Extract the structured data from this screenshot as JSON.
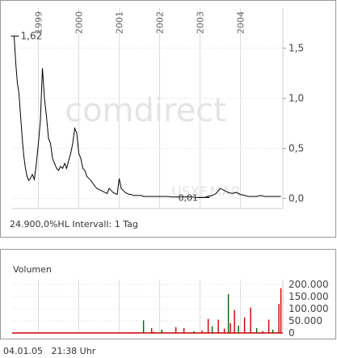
{
  "chart_data": [
    {
      "type": "line",
      "x_tick_labels": [
        "1999",
        "2000",
        "2001",
        "2002",
        "2003",
        "2004"
      ],
      "y_ticks": [
        0,
        0.5,
        1,
        1.5
      ],
      "y_tick_labels": [
        "0,0",
        "0,5",
        "1,0",
        "1,5"
      ],
      "ylim": [
        -0.1,
        1.9
      ],
      "xlim": [
        1998.35,
        2005.05
      ],
      "annotations": [
        {
          "text": "1,62",
          "x": 1998.4,
          "y": 1.62
        },
        {
          "text": "0,01",
          "x": 2003.0,
          "y": 0.01
        }
      ],
      "series": [
        {
          "x": [
            1998.4,
            1998.44,
            1998.48,
            1998.52,
            1998.56,
            1998.6,
            1998.64,
            1998.68,
            1998.72,
            1998.76,
            1998.8,
            1998.85,
            1998.9,
            1998.95,
            1999.0,
            1999.05,
            1999.1,
            1999.15,
            1999.2,
            1999.25,
            1999.3,
            1999.35,
            1999.4,
            1999.45,
            1999.5,
            1999.55,
            1999.6,
            1999.65,
            1999.7,
            1999.75,
            1999.8,
            1999.85,
            1999.9,
            1999.95,
            2000.0,
            2000.05,
            2000.1,
            2000.15,
            2000.2,
            2000.25,
            2000.3,
            2000.35,
            2000.4,
            2000.45,
            2000.5,
            2000.55,
            2000.6,
            2000.65,
            2000.7,
            2000.75,
            2000.8,
            2000.85,
            2000.9,
            2000.95,
            2001.0,
            2001.05,
            2001.1,
            2001.15,
            2001.2,
            2001.25,
            2001.3,
            2001.35,
            2001.4,
            2001.45,
            2001.5,
            2001.55,
            2001.6,
            2001.65,
            2001.7,
            2001.75,
            2001.8,
            2001.9,
            2002.0,
            2002.1,
            2002.2,
            2002.3,
            2002.4,
            2002.5,
            2002.6,
            2002.7,
            2002.8,
            2002.9,
            2003.0,
            2003.1,
            2003.2,
            2003.3,
            2003.4,
            2003.5,
            2003.6,
            2003.7,
            2003.8,
            2003.9,
            2004.0,
            2004.1,
            2004.2,
            2004.3,
            2004.4,
            2004.5,
            2004.6,
            2004.7,
            2004.8,
            2004.9,
            2005.0
          ],
          "y": [
            1.62,
            1.35,
            1.15,
            1.05,
            0.82,
            0.6,
            0.42,
            0.3,
            0.22,
            0.18,
            0.2,
            0.24,
            0.19,
            0.35,
            0.55,
            0.78,
            1.3,
            1.0,
            0.82,
            0.6,
            0.55,
            0.4,
            0.35,
            0.3,
            0.28,
            0.32,
            0.3,
            0.35,
            0.3,
            0.38,
            0.45,
            0.55,
            0.7,
            0.65,
            0.45,
            0.4,
            0.3,
            0.28,
            0.22,
            0.2,
            0.18,
            0.15,
            0.12,
            0.1,
            0.09,
            0.08,
            0.07,
            0.06,
            0.05,
            0.1,
            0.08,
            0.06,
            0.05,
            0.04,
            0.2,
            0.1,
            0.08,
            0.06,
            0.05,
            0.04,
            0.04,
            0.03,
            0.03,
            0.03,
            0.03,
            0.03,
            0.02,
            0.02,
            0.02,
            0.02,
            0.02,
            0.02,
            0.02,
            0.02,
            0.02,
            0.015,
            0.015,
            0.015,
            0.015,
            0.015,
            0.015,
            0.01,
            0.01,
            0.01,
            0.02,
            0.03,
            0.05,
            0.1,
            0.08,
            0.06,
            0.05,
            0.06,
            0.04,
            0.03,
            0.02,
            0.02,
            0.02,
            0.03,
            0.02,
            0.02,
            0.02,
            0.02,
            0.02
          ]
        }
      ]
    },
    {
      "type": "bar",
      "title": "Volumen",
      "y_ticks": [
        0,
        50000,
        100000,
        150000,
        200000
      ],
      "y_tick_labels": [
        "0",
        "50.000",
        "100.000",
        "150.000",
        "200.000"
      ],
      "ylim": [
        0,
        200000
      ],
      "xlim": [
        1998.35,
        2005.05
      ],
      "series": [
        {
          "x": [
            2001.35,
            2001.6,
            2001.8,
            2001.85,
            2002.05,
            2002.4,
            2002.6,
            2002.85,
            2003.05,
            2003.2,
            2003.3,
            2003.45,
            2003.6,
            2003.7,
            2003.75,
            2003.85,
            2003.95,
            2004.1,
            2004.25,
            2004.4,
            2004.55,
            2004.7,
            2004.8,
            2004.95,
            2005.0
          ],
          "values": [
            3000,
            52000,
            20000,
            5000,
            14000,
            24000,
            20000,
            7000,
            10000,
            58000,
            28000,
            55000,
            18000,
            160000,
            40000,
            95000,
            30000,
            64000,
            105000,
            20000,
            8000,
            55000,
            14000,
            120000,
            185000
          ]
        }
      ]
    }
  ],
  "main_chart": {
    "watermark": "comdirect",
    "sub_watermark": "USXF.MAR",
    "info_text": "24.900,0%HL Intervall: 1 Tag"
  },
  "volume_chart": {
    "title": "Volumen"
  },
  "footer": {
    "date": "04.01.05",
    "time": "21:38 Uhr"
  },
  "colors": {
    "line": "#000000",
    "volume_red": "#cc0000",
    "volume_green": "#006600",
    "grid": "#dddddd",
    "frame": "#999999",
    "watermark": "#e2e2e2"
  }
}
